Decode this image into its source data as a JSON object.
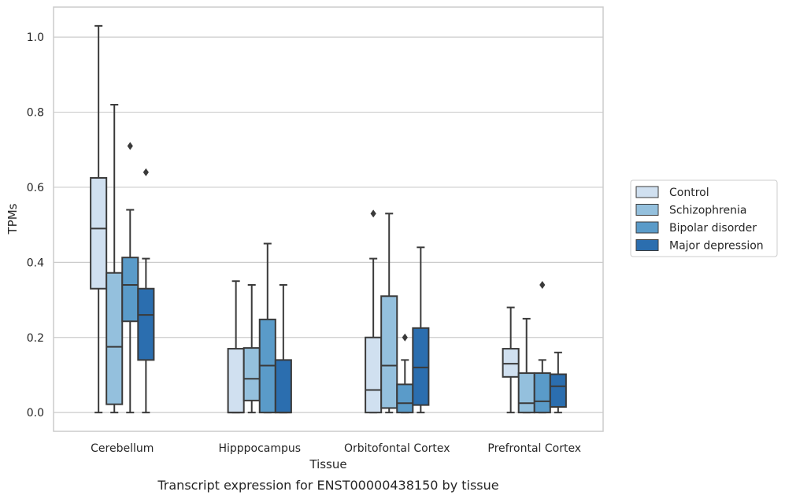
{
  "chart_data": {
    "type": "boxplot",
    "title": "",
    "caption": "Transcript expression for ENST00000438150 by tissue",
    "xlabel": "Tissue",
    "ylabel": "TPMs",
    "ylim": [
      -0.05,
      1.08
    ],
    "yticks": [
      0.0,
      0.2,
      0.4,
      0.6,
      0.8,
      1.0
    ],
    "ytick_labels": [
      "0.0",
      "0.2",
      "0.4",
      "0.6",
      "0.8",
      "1.0"
    ],
    "grid": "horizontal",
    "legend_position": "right",
    "categories": [
      "Cerebellum",
      "Hipppocampus",
      "Orbitofontal Cortex",
      "Prefrontal Cortex"
    ],
    "series": [
      {
        "name": "Control",
        "color": "#d0e0f0",
        "boxes": [
          {
            "whisker_low": 0.0,
            "q1": 0.33,
            "median": 0.49,
            "q3": 0.625,
            "whisker_high": 1.03,
            "outliers": []
          },
          {
            "whisker_low": 0.0,
            "q1": 0.0,
            "median": 0.0,
            "q3": 0.17,
            "whisker_high": 0.35,
            "outliers": []
          },
          {
            "whisker_low": 0.0,
            "q1": 0.0,
            "median": 0.06,
            "q3": 0.2,
            "whisker_high": 0.41,
            "outliers": [
              0.53
            ]
          },
          {
            "whisker_low": 0.0,
            "q1": 0.095,
            "median": 0.13,
            "q3": 0.17,
            "whisker_high": 0.28,
            "outliers": []
          }
        ]
      },
      {
        "name": "Schizophrenia",
        "color": "#94c0dd",
        "boxes": [
          {
            "whisker_low": 0.0,
            "q1": 0.022,
            "median": 0.175,
            "q3": 0.372,
            "whisker_high": 0.82,
            "outliers": []
          },
          {
            "whisker_low": 0.0,
            "q1": 0.032,
            "median": 0.09,
            "q3": 0.172,
            "whisker_high": 0.34,
            "outliers": []
          },
          {
            "whisker_low": 0.0,
            "q1": 0.012,
            "median": 0.125,
            "q3": 0.31,
            "whisker_high": 0.53,
            "outliers": []
          },
          {
            "whisker_low": 0.0,
            "q1": 0.0,
            "median": 0.025,
            "q3": 0.105,
            "whisker_high": 0.25,
            "outliers": []
          }
        ]
      },
      {
        "name": "Bipolar disorder",
        "color": "#5a9bc9",
        "boxes": [
          {
            "whisker_low": 0.0,
            "q1": 0.243,
            "median": 0.34,
            "q3": 0.413,
            "whisker_high": 0.54,
            "outliers": [
              0.71
            ]
          },
          {
            "whisker_low": 0.0,
            "q1": 0.0,
            "median": 0.125,
            "q3": 0.248,
            "whisker_high": 0.45,
            "outliers": []
          },
          {
            "whisker_low": 0.0,
            "q1": 0.0,
            "median": 0.025,
            "q3": 0.075,
            "whisker_high": 0.14,
            "outliers": [
              0.2
            ]
          },
          {
            "whisker_low": 0.0,
            "q1": 0.0,
            "median": 0.03,
            "q3": 0.105,
            "whisker_high": 0.14,
            "outliers": [
              0.34
            ]
          }
        ]
      },
      {
        "name": "Major depression",
        "color": "#2b6eaf",
        "boxes": [
          {
            "whisker_low": 0.0,
            "q1": 0.14,
            "median": 0.26,
            "q3": 0.33,
            "whisker_high": 0.41,
            "outliers": [
              0.64
            ]
          },
          {
            "whisker_low": 0.0,
            "q1": 0.0,
            "median": 0.0,
            "q3": 0.14,
            "whisker_high": 0.34,
            "outliers": []
          },
          {
            "whisker_low": 0.0,
            "q1": 0.02,
            "median": 0.12,
            "q3": 0.225,
            "whisker_high": 0.44,
            "outliers": []
          },
          {
            "whisker_low": 0.0,
            "q1": 0.015,
            "median": 0.07,
            "q3": 0.102,
            "whisker_high": 0.16,
            "outliers": []
          }
        ]
      }
    ]
  }
}
